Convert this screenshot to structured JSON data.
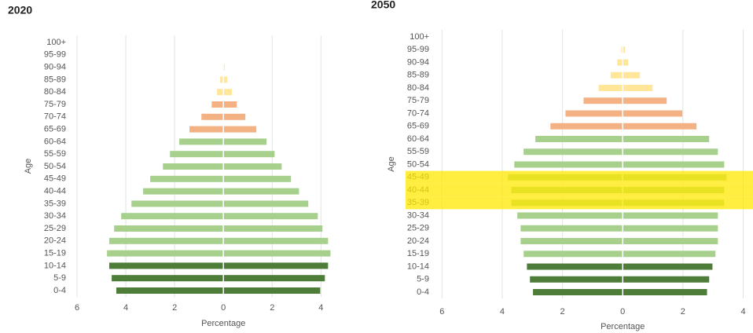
{
  "chart_data": [
    {
      "type": "pyramid",
      "title": "2020",
      "xlabel": "Percentage",
      "ylabel": "Age",
      "categories": [
        "0-4",
        "5-9",
        "10-14",
        "15-19",
        "20-24",
        "25-29",
        "30-34",
        "35-39",
        "40-44",
        "45-49",
        "50-54",
        "55-59",
        "60-64",
        "65-69",
        "70-74",
        "75-79",
        "80-84",
        "85-89",
        "90-94",
        "95-99",
        "100+"
      ],
      "colors": [
        "#4e7d3a",
        "#4e7d3a",
        "#4e7d3a",
        "#a8d08d",
        "#a8d08d",
        "#a8d08d",
        "#a8d08d",
        "#a8d08d",
        "#a8d08d",
        "#a8d08d",
        "#a8d08d",
        "#a8d08d",
        "#a8d08d",
        "#f4b183",
        "#f4b183",
        "#f4b183",
        "#ffe699",
        "#ffe699",
        "#ffe699",
        "#ffe699",
        "#ffe699"
      ],
      "series": [
        {
          "values": [
            -4.39,
            -4.58,
            -4.68,
            -4.77,
            -4.68,
            -4.48,
            -4.19,
            -3.77,
            -3.29,
            -3.0,
            -2.48,
            -2.19,
            -1.81,
            -1.39,
            -0.9,
            -0.48,
            -0.26,
            -0.13,
            -0.03,
            -0.01,
            0
          ]
        },
        {
          "values": [
            3.97,
            4.16,
            4.29,
            4.39,
            4.29,
            4.06,
            3.87,
            3.48,
            3.1,
            2.77,
            2.39,
            2.1,
            1.77,
            1.35,
            0.9,
            0.55,
            0.35,
            0.16,
            0.06,
            0.01,
            0
          ]
        }
      ],
      "xlim": [
        -6,
        5.6
      ],
      "xticks": [
        {
          "value": -6,
          "label": "6"
        },
        {
          "value": -4,
          "label": "4"
        },
        {
          "value": -2,
          "label": "2"
        },
        0,
        2,
        4
      ],
      "grid": true
    },
    {
      "type": "pyramid",
      "title": "2050",
      "xlabel": "Percentage",
      "ylabel": "Age",
      "categories": [
        "0-4",
        "5-9",
        "10-14",
        "15-19",
        "20-24",
        "25-29",
        "30-34",
        "35-39",
        "40-44",
        "45-49",
        "50-54",
        "55-59",
        "60-64",
        "65-69",
        "70-74",
        "75-79",
        "80-84",
        "85-89",
        "90-94",
        "95-99",
        "100+"
      ],
      "colors": [
        "#4e7d3a",
        "#4e7d3a",
        "#4e7d3a",
        "#a8d08d",
        "#a8d08d",
        "#a8d08d",
        "#a8d08d",
        "#a8d08d",
        "#a8d08d",
        "#a8d08d",
        "#a8d08d",
        "#a8d08d",
        "#a8d08d",
        "#f4b183",
        "#f4b183",
        "#f4b183",
        "#ffe699",
        "#ffe699",
        "#ffe699",
        "#ffe699",
        "#ffe699"
      ],
      "series": [
        {
          "values": [
            -2.98,
            -3.08,
            -3.18,
            -3.29,
            -3.39,
            -3.39,
            -3.5,
            -3.7,
            -3.7,
            -3.81,
            -3.6,
            -3.29,
            -2.9,
            -2.4,
            -1.9,
            -1.3,
            -0.8,
            -0.4,
            -0.18,
            -0.05,
            0
          ]
        },
        {
          "values": [
            2.8,
            2.87,
            2.98,
            3.08,
            3.16,
            3.16,
            3.16,
            3.37,
            3.37,
            3.45,
            3.37,
            3.16,
            2.87,
            2.45,
            1.98,
            1.46,
            0.99,
            0.57,
            0.18,
            0.08,
            0
          ]
        }
      ],
      "xlim": [
        -6.4,
        4.3
      ],
      "xticks": [
        {
          "value": -6,
          "label": "6"
        },
        {
          "value": -4,
          "label": "4"
        },
        {
          "value": -2,
          "label": "2"
        },
        0,
        2,
        4
      ],
      "highlighted": [
        7,
        8,
        9
      ],
      "grid": true
    }
  ]
}
